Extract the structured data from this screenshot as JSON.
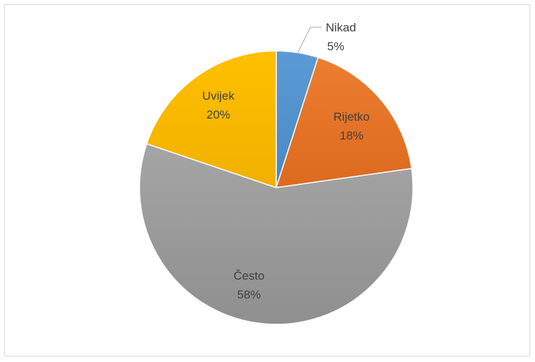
{
  "chart_data": {
    "type": "pie",
    "categories": [
      "Nikad",
      "Rijetko",
      "Često",
      "Uvijek"
    ],
    "values": [
      5,
      18,
      58,
      20
    ],
    "labels": [
      "5%",
      "18%",
      "58%",
      "20%"
    ],
    "colors": [
      "#5b9bd5",
      "#ed7d31",
      "#a5a5a5",
      "#ffc000"
    ],
    "gradient_dark": [
      "#4a88c4",
      "#dc6a1f",
      "#8f8f8f",
      "#f0b000"
    ],
    "start_angle_deg": 0,
    "direction": "clockwise",
    "title": "",
    "legend": "none"
  }
}
